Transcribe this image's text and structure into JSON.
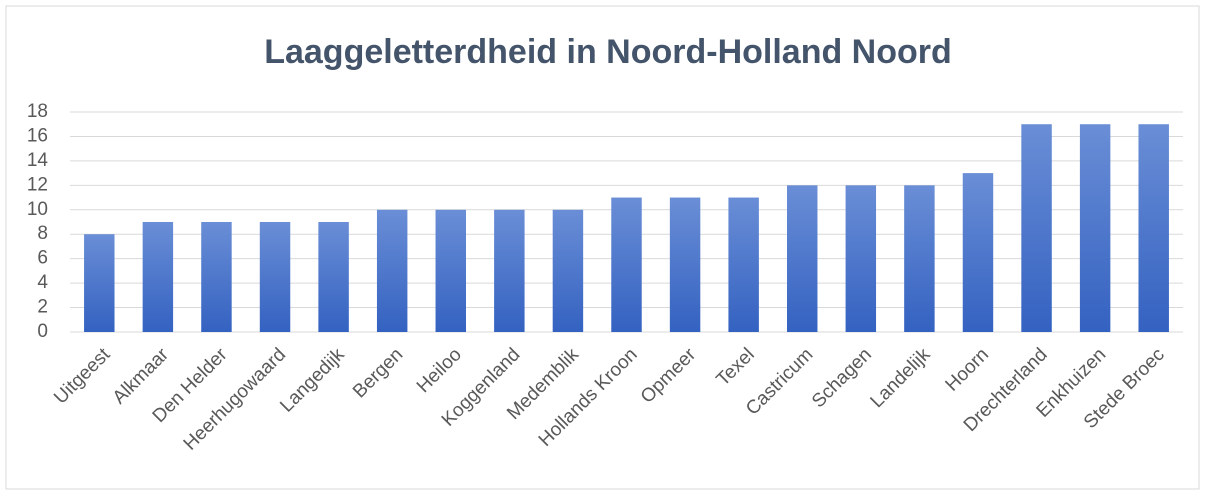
{
  "chart_data": {
    "type": "bar",
    "title": "Laaggeletterdheid in Noord-Holland Noord",
    "categories": [
      "Uitgeest",
      "Alkmaar",
      "Den Helder",
      "Heerhugowaard",
      "Langedijk",
      "Bergen",
      "Heiloo",
      "Koggenland",
      "Medemblik",
      "Hollands Kroon",
      "Opmeer",
      "Texel",
      "Castricum",
      "Schagen",
      "Landelijk",
      "Hoorn",
      "Drechterland",
      "Enkhuizen",
      "Stede Broec"
    ],
    "values": [
      8,
      9,
      9,
      9,
      9,
      10,
      10,
      10,
      10,
      11,
      11,
      11,
      12,
      12,
      12,
      13,
      17,
      17,
      17
    ],
    "color": "#4472c4",
    "ylim": [
      0,
      18
    ],
    "yticks": [
      0,
      2,
      4,
      6,
      8,
      10,
      12,
      14,
      16,
      18
    ],
    "grid": true
  }
}
